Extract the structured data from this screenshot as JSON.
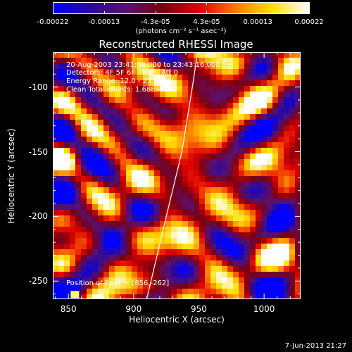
{
  "colorbar": {
    "tick_labels": [
      "-0.00022",
      "-0.00013",
      "-4.3e-05",
      "4.3e-05",
      "0.00013",
      "0.00022"
    ],
    "units": "(photons cm⁻² s⁻¹ asec⁻²)",
    "colors": [
      "#0000ff",
      "#2a0a9c",
      "#5a1070",
      "#7a0010",
      "#e00000",
      "#ff7a00",
      "#ffe000",
      "#ffffff"
    ]
  },
  "chart_data": {
    "type": "heatmap",
    "title": "Reconstructed RHESSI Image",
    "xlabel": "Heliocentric X (arcsec)",
    "ylabel": "Heliocentric Y (arcsec)",
    "xlim": [
      838,
      1028
    ],
    "ylim": [
      -264,
      -73
    ],
    "xticks": [
      "850",
      "900",
      "950",
      "1000"
    ],
    "xtick_values": [
      850,
      900,
      950,
      1000
    ],
    "yticks": [
      "-100",
      "-150",
      "-200",
      "-250"
    ],
    "ytick_values": [
      -100,
      -150,
      -200,
      -250
    ],
    "value_range": [
      -0.00022,
      0.00022
    ],
    "annotations": {
      "time": "20-Aug-2003 23:41:08.000 to 23:43:16.000",
      "detectors": "Detectors: 4F 5F 6F 7F 8F, Att 0",
      "energy": "Energy Range: 12.0 - 25.0 keV",
      "clean": "Clean    Total counts: 1.68E+05",
      "peak": "Position of Peak = [856,-262]"
    },
    "peak_position": [
      856,
      -262
    ],
    "limb_curve": [
      [
        910,
        -264
      ],
      [
        925,
        -200
      ],
      [
        937,
        -150
      ],
      [
        945,
        -100
      ],
      [
        949,
        -73
      ]
    ]
  },
  "footer": {
    "date": "7-Jun-2013 21:27"
  }
}
